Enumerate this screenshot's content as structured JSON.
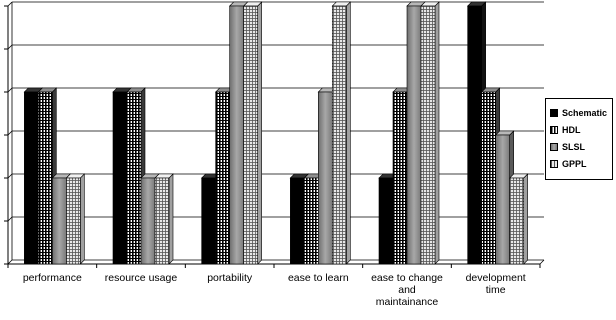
{
  "chart_data": {
    "type": "bar",
    "title": "",
    "xlabel": "",
    "ylabel": "",
    "categories": [
      "performance",
      "resource usage",
      "portability",
      "ease to learn",
      "ease to change and maintainance",
      "development time"
    ],
    "category_lines": [
      [
        "performance"
      ],
      [
        "resource usage"
      ],
      [
        "portability"
      ],
      [
        "ease to learn"
      ],
      [
        "ease to change",
        "and",
        "maintainance"
      ],
      [
        "development",
        "time"
      ]
    ],
    "series": [
      {
        "name": "Schematic",
        "values": [
          4,
          4,
          2,
          2,
          2,
          6
        ],
        "color": "#000000"
      },
      {
        "name": "HDL",
        "values": [
          4,
          4,
          4,
          2,
          4,
          4
        ],
        "color": "#505050"
      },
      {
        "name": "SLSL",
        "values": [
          2,
          2,
          6,
          4,
          6,
          3
        ],
        "color": "#8a8a8a"
      },
      {
        "name": "GPPL",
        "values": [
          2,
          2,
          6,
          6,
          6,
          2
        ],
        "color": "#dcdcdc"
      }
    ],
    "ylim": [
      0,
      6
    ],
    "grid": true,
    "style": "3d",
    "legend_position": "right"
  }
}
